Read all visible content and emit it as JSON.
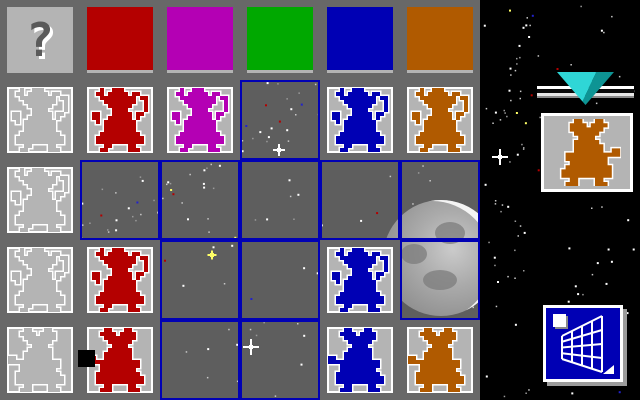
{
  "game": {
    "description": "tile matching board with dancing mouse creatures in space",
    "mystery_glyph": "?"
  },
  "palette": {
    "tile_gray": "#b4b4b4",
    "border_gray": "#686868",
    "space_gray": "#5e5e5e",
    "grid_blue": "#0000b4",
    "red": "#b40000",
    "magenta": "#b400b4",
    "green": "#00a800",
    "blue": "#0000b4",
    "orange": "#b05a00",
    "white": "#ffffff",
    "pointer_cyan_light": "#2fd6d6",
    "pointer_cyan_dark": "#0e9494",
    "panel_black": "#000000"
  },
  "board": {
    "columns": 6,
    "rows": 5,
    "cells": [
      [
        {
          "type": "mystery"
        },
        {
          "type": "swatch",
          "color": "red"
        },
        {
          "type": "swatch",
          "color": "magenta"
        },
        {
          "type": "swatch",
          "color": "green"
        },
        {
          "type": "swatch",
          "color": "blue"
        },
        {
          "type": "swatch",
          "color": "orange"
        }
      ],
      [
        {
          "type": "creature",
          "color": "white",
          "pose": "dance"
        },
        {
          "type": "creature",
          "color": "red",
          "pose": "dance"
        },
        {
          "type": "creature",
          "color": "magenta",
          "pose": "dance"
        },
        {
          "type": "empty"
        },
        {
          "type": "creature",
          "color": "blue",
          "pose": "dance"
        },
        {
          "type": "creature",
          "color": "orange",
          "pose": "dance"
        }
      ],
      [
        {
          "type": "creature",
          "color": "white",
          "pose": "dance"
        },
        {
          "type": "empty"
        },
        {
          "type": "empty"
        },
        {
          "type": "empty"
        },
        {
          "type": "empty"
        },
        {
          "type": "empty"
        }
      ],
      [
        {
          "type": "creature",
          "color": "white",
          "pose": "dance"
        },
        {
          "type": "creature",
          "color": "red",
          "pose": "dance"
        },
        {
          "type": "empty"
        },
        {
          "type": "empty"
        },
        {
          "type": "creature",
          "color": "blue",
          "pose": "dance"
        },
        {
          "type": "empty"
        }
      ],
      [
        {
          "type": "creature",
          "color": "white",
          "pose": "reach-left"
        },
        {
          "type": "creature",
          "color": "red",
          "pose": "reach-left"
        },
        {
          "type": "empty"
        },
        {
          "type": "empty"
        },
        {
          "type": "creature",
          "color": "blue",
          "pose": "reach-left"
        },
        {
          "type": "creature",
          "color": "orange",
          "pose": "reach-left"
        }
      ]
    ],
    "cursor": {
      "row": 4,
      "col": 1
    }
  },
  "side_panel": {
    "pointer_icon": "down-triangle-pointer",
    "current_piece": {
      "color": "orange",
      "pose": "reach-right"
    },
    "grid_button_icon": "perspective-grid"
  }
}
